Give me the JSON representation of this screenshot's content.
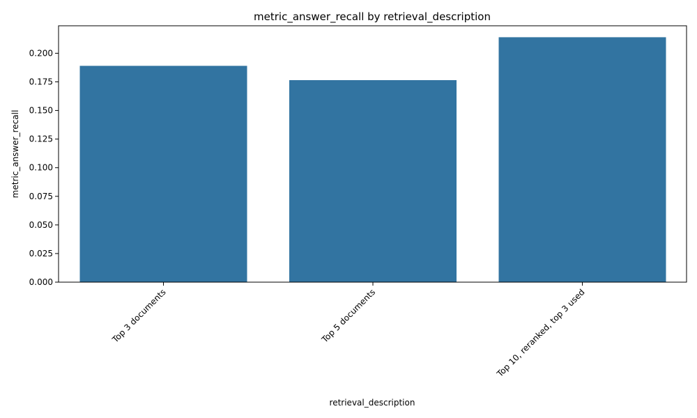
{
  "chart_data": {
    "type": "bar",
    "title": "metric_answer_recall by retrieval_description",
    "xlabel": "retrieval_description",
    "ylabel": "metric_answer_recall",
    "categories": [
      "Top 3 documents",
      "Top 5 documents",
      "Top 10, reranked, top 3 used"
    ],
    "values": [
      0.189,
      0.1765,
      0.214
    ],
    "ylim": [
      0,
      0.224
    ],
    "yticks": [
      0.0,
      0.025,
      0.05,
      0.075,
      0.1,
      0.125,
      0.15,
      0.175,
      0.2
    ],
    "ytick_labels": [
      "0.000",
      "0.025",
      "0.050",
      "0.075",
      "0.100",
      "0.125",
      "0.150",
      "0.175",
      "0.200"
    ],
    "bar_color": "#3274a1",
    "grid": false,
    "legend": "none"
  }
}
